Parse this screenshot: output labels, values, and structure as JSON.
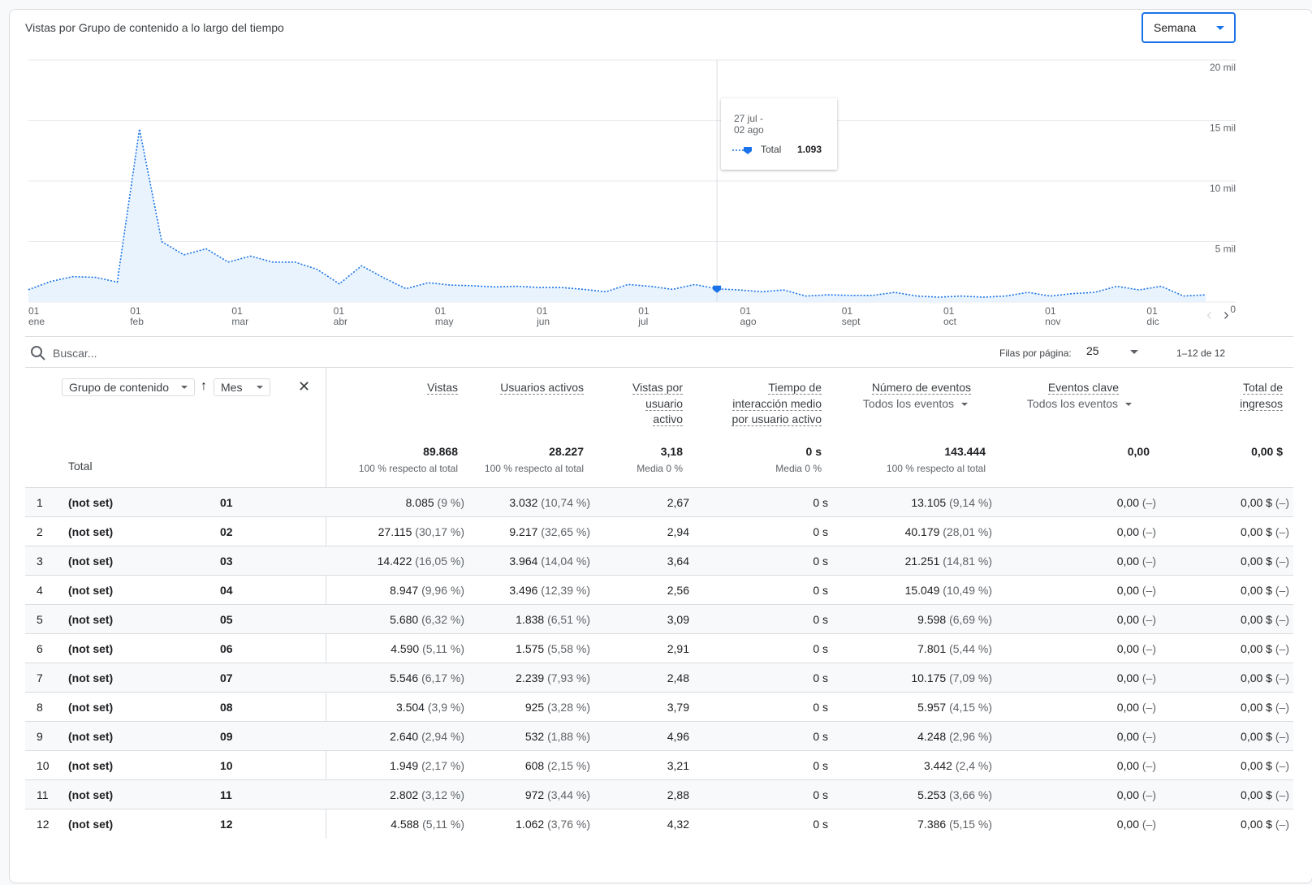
{
  "chart_title": "Vistas por Grupo de contenido a lo largo del tiempo",
  "period_select": "Semana",
  "chart_data": {
    "type": "area",
    "title": "Vistas por Grupo de contenido a lo largo del tiempo",
    "series": [
      {
        "name": "Total",
        "values": [
          1020,
          1700,
          2100,
          2050,
          1650,
          14300,
          5000,
          3900,
          4400,
          3300,
          3800,
          3300,
          3300,
          2700,
          1500,
          3000,
          2000,
          1100,
          1600,
          1400,
          1350,
          1250,
          1300,
          1200,
          1200,
          1050,
          850,
          1450,
          1300,
          1050,
          1450,
          1093,
          1000,
          850,
          1000,
          500,
          600,
          550,
          550,
          800,
          500,
          400,
          500,
          400,
          500,
          800,
          500,
          700,
          800,
          1300,
          1000,
          1300,
          500,
          600
        ]
      }
    ],
    "x_tick_labels": [
      [
        "01",
        "ene"
      ],
      [
        "01",
        "feb"
      ],
      [
        "01",
        "mar"
      ],
      [
        "01",
        "abr"
      ],
      [
        "01",
        "may"
      ],
      [
        "01",
        "jun"
      ],
      [
        "01",
        "jul"
      ],
      [
        "01",
        "ago"
      ],
      [
        "01",
        "sept"
      ],
      [
        "01",
        "oct"
      ],
      [
        "01",
        "nov"
      ],
      [
        "01",
        "dic"
      ]
    ],
    "y_tick_labels": [
      "20 mil",
      "15 mil",
      "10 mil",
      "5 mil",
      "0"
    ],
    "y_ticks": [
      20000,
      15000,
      10000,
      5000,
      0
    ],
    "ylim": [
      0,
      20000
    ],
    "grid": true,
    "color": "#1a73e8",
    "fill": "#e8f3fd",
    "tooltip": {
      "date_line1": "27 jul -",
      "date_line2": "02 ago",
      "series": "Total",
      "value": "1.093",
      "index": 31
    }
  },
  "toolbar": {
    "search_placeholder": "Buscar...",
    "rows_label": "Filas por página:",
    "rows_value": "25",
    "range": "1–12 de 12"
  },
  "dims": {
    "primary": "Grupo de contenido",
    "secondary": "Mes"
  },
  "headers": {
    "vistas": "Vistas",
    "usuarios": "Usuarios activos",
    "vpu": [
      "Vistas por",
      "usuario",
      "activo"
    ],
    "tiempo": [
      "Tiempo de",
      "interacción medio",
      "por usuario activo"
    ],
    "eventos": "Número de eventos",
    "eventos_sub": "Todos los eventos",
    "clave": "Eventos clave",
    "clave_sub": "Todos los eventos",
    "ingresos": [
      "Total de",
      "ingresos"
    ]
  },
  "totals": {
    "label": "Total",
    "vistas": "89.868",
    "vistas_sub": "100 % respecto al total",
    "usuarios": "28.227",
    "usuarios_sub": "100 % respecto al total",
    "vpu": "3,18",
    "vpu_sub": "Media 0 %",
    "tiempo": "0 s",
    "tiempo_sub": "Media 0 %",
    "eventos": "143.444",
    "eventos_sub": "100 % respecto al total",
    "clave": "0,00",
    "ingresos": "0,00 $"
  },
  "rows": [
    {
      "n": "1",
      "grp": "(not set)",
      "mes": "01",
      "vistas": "8.085",
      "vistas_p": "(9 %)",
      "usuarios": "3.032",
      "usuarios_p": "(10,74 %)",
      "vpu": "2,67",
      "tiempo": "0 s",
      "eventos": "13.105",
      "eventos_p": "(9,14 %)",
      "clave": "0,00",
      "clave_p": "(–)",
      "ingresos": "0,00 $",
      "ingresos_p": "(–)"
    },
    {
      "n": "2",
      "grp": "(not set)",
      "mes": "02",
      "vistas": "27.115",
      "vistas_p": "(30,17 %)",
      "usuarios": "9.217",
      "usuarios_p": "(32,65 %)",
      "vpu": "2,94",
      "tiempo": "0 s",
      "eventos": "40.179",
      "eventos_p": "(28,01 %)",
      "clave": "0,00",
      "clave_p": "(–)",
      "ingresos": "0,00 $",
      "ingresos_p": "(–)"
    },
    {
      "n": "3",
      "grp": "(not set)",
      "mes": "03",
      "vistas": "14.422",
      "vistas_p": "(16,05 %)",
      "usuarios": "3.964",
      "usuarios_p": "(14,04 %)",
      "vpu": "3,64",
      "tiempo": "0 s",
      "eventos": "21.251",
      "eventos_p": "(14,81 %)",
      "clave": "0,00",
      "clave_p": "(–)",
      "ingresos": "0,00 $",
      "ingresos_p": "(–)"
    },
    {
      "n": "4",
      "grp": "(not set)",
      "mes": "04",
      "vistas": "8.947",
      "vistas_p": "(9,96 %)",
      "usuarios": "3.496",
      "usuarios_p": "(12,39 %)",
      "vpu": "2,56",
      "tiempo": "0 s",
      "eventos": "15.049",
      "eventos_p": "(10,49 %)",
      "clave": "0,00",
      "clave_p": "(–)",
      "ingresos": "0,00 $",
      "ingresos_p": "(–)"
    },
    {
      "n": "5",
      "grp": "(not set)",
      "mes": "05",
      "vistas": "5.680",
      "vistas_p": "(6,32 %)",
      "usuarios": "1.838",
      "usuarios_p": "(6,51 %)",
      "vpu": "3,09",
      "tiempo": "0 s",
      "eventos": "9.598",
      "eventos_p": "(6,69 %)",
      "clave": "0,00",
      "clave_p": "(–)",
      "ingresos": "0,00 $",
      "ingresos_p": "(–)"
    },
    {
      "n": "6",
      "grp": "(not set)",
      "mes": "06",
      "vistas": "4.590",
      "vistas_p": "(5,11 %)",
      "usuarios": "1.575",
      "usuarios_p": "(5,58 %)",
      "vpu": "2,91",
      "tiempo": "0 s",
      "eventos": "7.801",
      "eventos_p": "(5,44 %)",
      "clave": "0,00",
      "clave_p": "(–)",
      "ingresos": "0,00 $",
      "ingresos_p": "(–)"
    },
    {
      "n": "7",
      "grp": "(not set)",
      "mes": "07",
      "vistas": "5.546",
      "vistas_p": "(6,17 %)",
      "usuarios": "2.239",
      "usuarios_p": "(7,93 %)",
      "vpu": "2,48",
      "tiempo": "0 s",
      "eventos": "10.175",
      "eventos_p": "(7,09 %)",
      "clave": "0,00",
      "clave_p": "(–)",
      "ingresos": "0,00 $",
      "ingresos_p": "(–)"
    },
    {
      "n": "8",
      "grp": "(not set)",
      "mes": "08",
      "vistas": "3.504",
      "vistas_p": "(3,9 %)",
      "usuarios": "925",
      "usuarios_p": "(3,28 %)",
      "vpu": "3,79",
      "tiempo": "0 s",
      "eventos": "5.957",
      "eventos_p": "(4,15 %)",
      "clave": "0,00",
      "clave_p": "(–)",
      "ingresos": "0,00 $",
      "ingresos_p": "(–)"
    },
    {
      "n": "9",
      "grp": "(not set)",
      "mes": "09",
      "vistas": "2.640",
      "vistas_p": "(2,94 %)",
      "usuarios": "532",
      "usuarios_p": "(1,88 %)",
      "vpu": "4,96",
      "tiempo": "0 s",
      "eventos": "4.248",
      "eventos_p": "(2,96 %)",
      "clave": "0,00",
      "clave_p": "(–)",
      "ingresos": "0,00 $",
      "ingresos_p": "(–)"
    },
    {
      "n": "10",
      "grp": "(not set)",
      "mes": "10",
      "vistas": "1.949",
      "vistas_p": "(2,17 %)",
      "usuarios": "608",
      "usuarios_p": "(2,15 %)",
      "vpu": "3,21",
      "tiempo": "0 s",
      "eventos": "3.442",
      "eventos_p": "(2,4 %)",
      "clave": "0,00",
      "clave_p": "(–)",
      "ingresos": "0,00 $",
      "ingresos_p": "(–)"
    },
    {
      "n": "11",
      "grp": "(not set)",
      "mes": "11",
      "vistas": "2.802",
      "vistas_p": "(3,12 %)",
      "usuarios": "972",
      "usuarios_p": "(3,44 %)",
      "vpu": "2,88",
      "tiempo": "0 s",
      "eventos": "5.253",
      "eventos_p": "(3,66 %)",
      "clave": "0,00",
      "clave_p": "(–)",
      "ingresos": "0,00 $",
      "ingresos_p": "(–)"
    },
    {
      "n": "12",
      "grp": "(not set)",
      "mes": "12",
      "vistas": "4.588",
      "vistas_p": "(5,11 %)",
      "usuarios": "1.062",
      "usuarios_p": "(3,76 %)",
      "vpu": "4,32",
      "tiempo": "0 s",
      "eventos": "7.386",
      "eventos_p": "(5,15 %)",
      "clave": "0,00",
      "clave_p": "(–)",
      "ingresos": "0,00 $",
      "ingresos_p": "(–)"
    }
  ]
}
